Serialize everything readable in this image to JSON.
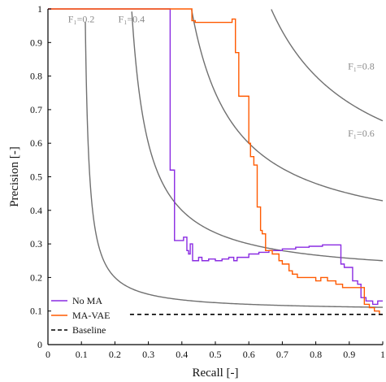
{
  "chart_data": {
    "type": "line",
    "xlabel": "Recall [-]",
    "ylabel": "Precision [-]",
    "xlim": [
      0,
      1
    ],
    "ylim": [
      0,
      1
    ],
    "xticks": [
      "0",
      "0.1",
      "0.2",
      "0.3",
      "0.4",
      "0.5",
      "0.6",
      "0.7",
      "0.8",
      "0.9",
      "1"
    ],
    "yticks": [
      "0",
      "0.1",
      "0.2",
      "0.3",
      "0.4",
      "0.5",
      "0.6",
      "0.7",
      "0.8",
      "0.9",
      "1"
    ],
    "grid": false,
    "legend_position": "bottom-left",
    "iso_f1": {
      "color": "#707070",
      "label_color": "#8a8a8a",
      "curves": [
        {
          "f1": 0.2,
          "label": "F₁=0.2",
          "label_at": [
            0.06,
            0.96
          ]
        },
        {
          "f1": 0.4,
          "label": "F₁=0.4",
          "label_at": [
            0.21,
            0.96
          ]
        },
        {
          "f1": 0.6,
          "label": "F₁=0.6",
          "label_at": [
            0.975,
            0.62
          ]
        },
        {
          "f1": 0.8,
          "label": "F₁=0.8",
          "label_at": [
            0.975,
            0.82
          ]
        }
      ]
    },
    "series": [
      {
        "name": "No MA",
        "color": "#8a2be2",
        "style": "step",
        "points": [
          [
            0,
            1
          ],
          [
            0.365,
            1
          ],
          [
            0.365,
            0.52
          ],
          [
            0.378,
            0.52
          ],
          [
            0.378,
            0.41
          ],
          [
            0.378,
            0.31
          ],
          [
            0.405,
            0.31
          ],
          [
            0.405,
            0.32
          ],
          [
            0.415,
            0.32
          ],
          [
            0.415,
            0.28
          ],
          [
            0.42,
            0.28
          ],
          [
            0.42,
            0.27
          ],
          [
            0.425,
            0.27
          ],
          [
            0.425,
            0.3
          ],
          [
            0.432,
            0.3
          ],
          [
            0.432,
            0.25
          ],
          [
            0.45,
            0.25
          ],
          [
            0.45,
            0.26
          ],
          [
            0.46,
            0.26
          ],
          [
            0.46,
            0.25
          ],
          [
            0.48,
            0.25
          ],
          [
            0.48,
            0.255
          ],
          [
            0.5,
            0.255
          ],
          [
            0.5,
            0.25
          ],
          [
            0.52,
            0.25
          ],
          [
            0.52,
            0.255
          ],
          [
            0.54,
            0.255
          ],
          [
            0.54,
            0.26
          ],
          [
            0.555,
            0.26
          ],
          [
            0.555,
            0.25
          ],
          [
            0.565,
            0.25
          ],
          [
            0.565,
            0.26
          ],
          [
            0.6,
            0.26
          ],
          [
            0.6,
            0.27
          ],
          [
            0.63,
            0.27
          ],
          [
            0.63,
            0.275
          ],
          [
            0.66,
            0.275
          ],
          [
            0.66,
            0.28
          ],
          [
            0.7,
            0.28
          ],
          [
            0.7,
            0.285
          ],
          [
            0.74,
            0.285
          ],
          [
            0.74,
            0.29
          ],
          [
            0.78,
            0.29
          ],
          [
            0.78,
            0.293
          ],
          [
            0.82,
            0.293
          ],
          [
            0.82,
            0.297
          ],
          [
            0.875,
            0.297
          ],
          [
            0.875,
            0.24
          ],
          [
            0.885,
            0.24
          ],
          [
            0.885,
            0.23
          ],
          [
            0.91,
            0.23
          ],
          [
            0.91,
            0.19
          ],
          [
            0.925,
            0.19
          ],
          [
            0.925,
            0.18
          ],
          [
            0.935,
            0.18
          ],
          [
            0.935,
            0.14
          ],
          [
            0.95,
            0.14
          ],
          [
            0.95,
            0.13
          ],
          [
            0.97,
            0.13
          ],
          [
            0.97,
            0.12
          ],
          [
            0.985,
            0.12
          ],
          [
            0.985,
            0.13
          ],
          [
            1,
            0.13
          ]
        ]
      },
      {
        "name": "MA-VAE",
        "color": "#ff5a00",
        "style": "step",
        "points": [
          [
            0,
            1
          ],
          [
            0.43,
            1
          ],
          [
            0.43,
            0.965
          ],
          [
            0.44,
            0.965
          ],
          [
            0.44,
            0.96
          ],
          [
            0.55,
            0.96
          ],
          [
            0.55,
            0.97
          ],
          [
            0.56,
            0.97
          ],
          [
            0.56,
            0.87
          ],
          [
            0.57,
            0.87
          ],
          [
            0.57,
            0.74
          ],
          [
            0.6,
            0.74
          ],
          [
            0.6,
            0.6
          ],
          [
            0.605,
            0.6
          ],
          [
            0.605,
            0.56
          ],
          [
            0.615,
            0.56
          ],
          [
            0.615,
            0.535
          ],
          [
            0.625,
            0.535
          ],
          [
            0.625,
            0.41
          ],
          [
            0.635,
            0.41
          ],
          [
            0.635,
            0.34
          ],
          [
            0.64,
            0.34
          ],
          [
            0.64,
            0.33
          ],
          [
            0.65,
            0.33
          ],
          [
            0.65,
            0.28
          ],
          [
            0.67,
            0.28
          ],
          [
            0.67,
            0.27
          ],
          [
            0.69,
            0.27
          ],
          [
            0.69,
            0.25
          ],
          [
            0.7,
            0.25
          ],
          [
            0.7,
            0.24
          ],
          [
            0.72,
            0.24
          ],
          [
            0.72,
            0.22
          ],
          [
            0.73,
            0.22
          ],
          [
            0.73,
            0.21
          ],
          [
            0.745,
            0.21
          ],
          [
            0.745,
            0.2
          ],
          [
            0.8,
            0.2
          ],
          [
            0.8,
            0.19
          ],
          [
            0.815,
            0.19
          ],
          [
            0.815,
            0.2
          ],
          [
            0.835,
            0.2
          ],
          [
            0.835,
            0.19
          ],
          [
            0.86,
            0.19
          ],
          [
            0.86,
            0.18
          ],
          [
            0.88,
            0.18
          ],
          [
            0.88,
            0.17
          ],
          [
            0.945,
            0.17
          ],
          [
            0.945,
            0.12
          ],
          [
            0.96,
            0.12
          ],
          [
            0.96,
            0.11
          ],
          [
            0.975,
            0.11
          ],
          [
            0.975,
            0.1
          ],
          [
            0.99,
            0.1
          ],
          [
            0.99,
            0.09
          ],
          [
            1,
            0.09
          ]
        ]
      },
      {
        "name": "Baseline",
        "color": "#000000",
        "style": "dashed",
        "points": [
          [
            0.245,
            0.09
          ],
          [
            1,
            0.09
          ]
        ]
      }
    ]
  }
}
